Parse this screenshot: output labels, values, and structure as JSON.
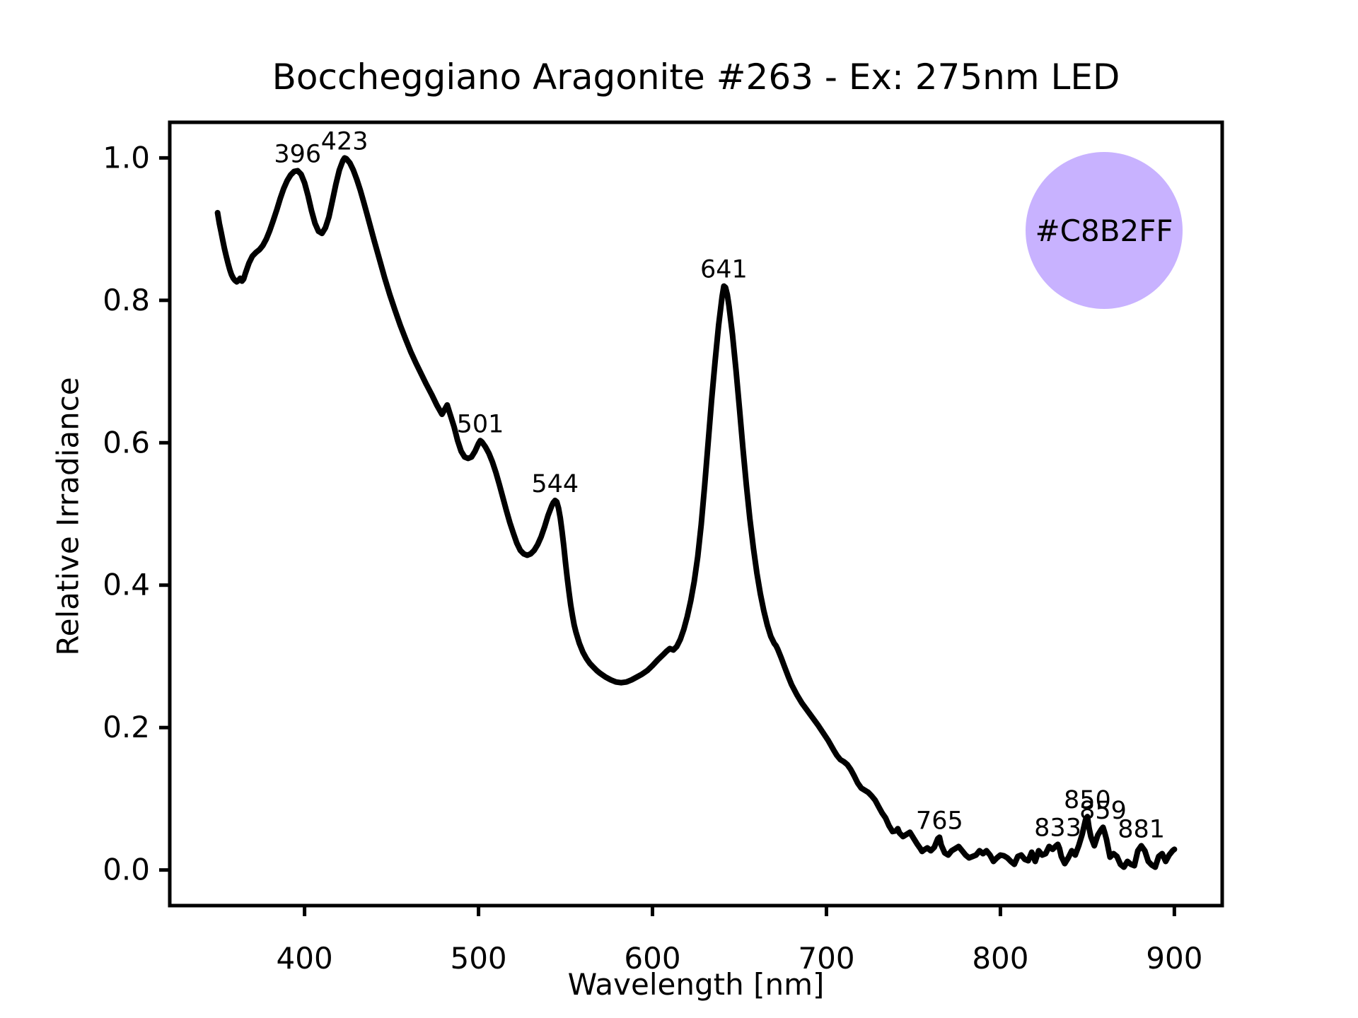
{
  "chart": {
    "title": "Boccheggiano Aragonite #263 - Ex: 275nm LED",
    "xlabel": "Wavelength [nm]",
    "ylabel": "Relative Irradiance"
  },
  "swatch": {
    "label": "#C8B2FF",
    "fill": "#C8B2FF",
    "stroke": "#000000"
  },
  "chart_data": {
    "type": "line",
    "title": "Boccheggiano Aragonite #263 - Ex: 275nm LED",
    "xlabel": "Wavelength [nm]",
    "ylabel": "Relative Irradiance",
    "xlim": [
      322.5,
      927.5
    ],
    "ylim": [
      -0.05,
      1.05
    ],
    "grid": false,
    "line_color": "#000000",
    "xticks": {
      "values": [
        400,
        500,
        600,
        700,
        800,
        900
      ],
      "labels": [
        "400",
        "500",
        "600",
        "700",
        "800",
        "900"
      ]
    },
    "yticks": {
      "values": [
        0.0,
        0.2,
        0.4,
        0.6,
        0.8,
        1.0
      ],
      "labels": [
        "0.0",
        "0.2",
        "0.4",
        "0.6",
        "0.8",
        "1.0"
      ]
    },
    "annotated_peaks": [
      {
        "label": "396",
        "x": 396,
        "y": 0.982
      },
      {
        "label": "423",
        "x": 423,
        "y": 1.0
      },
      {
        "label": "501",
        "x": 501,
        "y": 0.603
      },
      {
        "label": "544",
        "x": 544,
        "y": 0.519
      },
      {
        "label": "641",
        "x": 641,
        "y": 0.82
      },
      {
        "label": "765",
        "x": 765,
        "y": 0.046
      },
      {
        "label": "833",
        "x": 833,
        "y": 0.036
      },
      {
        "label": "850",
        "x": 850,
        "y": 0.075
      },
      {
        "label": "859",
        "x": 859,
        "y": 0.06
      },
      {
        "label": "881",
        "x": 881,
        "y": 0.034
      }
    ],
    "series": [
      {
        "name": "emission spectrum (Ex: 275nm LED)",
        "points": [
          [
            350,
            0.923
          ],
          [
            351,
            0.908
          ],
          [
            352,
            0.896
          ],
          [
            353,
            0.884
          ],
          [
            354,
            0.872
          ],
          [
            355,
            0.862
          ],
          [
            356,
            0.852
          ],
          [
            357,
            0.843
          ],
          [
            358,
            0.836
          ],
          [
            359,
            0.831
          ],
          [
            360,
            0.828
          ],
          [
            361,
            0.826
          ],
          [
            362,
            0.828
          ],
          [
            363,
            0.831
          ],
          [
            364,
            0.827
          ],
          [
            365,
            0.83
          ],
          [
            366,
            0.838
          ],
          [
            368,
            0.852
          ],
          [
            370,
            0.862
          ],
          [
            372,
            0.867
          ],
          [
            374,
            0.871
          ],
          [
            376,
            0.877
          ],
          [
            378,
            0.886
          ],
          [
            380,
            0.898
          ],
          [
            382,
            0.912
          ],
          [
            384,
            0.927
          ],
          [
            386,
            0.943
          ],
          [
            388,
            0.957
          ],
          [
            390,
            0.968
          ],
          [
            392,
            0.976
          ],
          [
            394,
            0.981
          ],
          [
            396,
            0.982
          ],
          [
            398,
            0.977
          ],
          [
            400,
            0.965
          ],
          [
            402,
            0.947
          ],
          [
            404,
            0.926
          ],
          [
            406,
            0.908
          ],
          [
            408,
            0.897
          ],
          [
            410,
            0.894
          ],
          [
            412,
            0.902
          ],
          [
            414,
            0.917
          ],
          [
            416,
            0.94
          ],
          [
            418,
            0.963
          ],
          [
            420,
            0.983
          ],
          [
            422,
            0.996
          ],
          [
            423,
            1.0
          ],
          [
            424,
            0.999
          ],
          [
            426,
            0.993
          ],
          [
            428,
            0.983
          ],
          [
            430,
            0.97
          ],
          [
            432,
            0.955
          ],
          [
            434,
            0.938
          ],
          [
            436,
            0.92
          ],
          [
            438,
            0.902
          ],
          [
            440,
            0.884
          ],
          [
            443,
            0.858
          ],
          [
            446,
            0.832
          ],
          [
            449,
            0.808
          ],
          [
            452,
            0.786
          ],
          [
            455,
            0.765
          ],
          [
            458,
            0.746
          ],
          [
            461,
            0.728
          ],
          [
            464,
            0.712
          ],
          [
            467,
            0.697
          ],
          [
            470,
            0.682
          ],
          [
            473,
            0.668
          ],
          [
            476,
            0.653
          ],
          [
            479,
            0.64
          ],
          [
            482,
            0.653
          ],
          [
            483,
            0.645
          ],
          [
            486,
            0.622
          ],
          [
            488,
            0.603
          ],
          [
            490,
            0.588
          ],
          [
            492,
            0.58
          ],
          [
            494,
            0.578
          ],
          [
            496,
            0.58
          ],
          [
            498,
            0.588
          ],
          [
            500,
            0.599
          ],
          [
            501,
            0.603
          ],
          [
            502,
            0.601
          ],
          [
            504,
            0.594
          ],
          [
            506,
            0.585
          ],
          [
            508,
            0.573
          ],
          [
            510,
            0.558
          ],
          [
            512,
            0.541
          ],
          [
            514,
            0.523
          ],
          [
            516,
            0.505
          ],
          [
            518,
            0.488
          ],
          [
            520,
            0.473
          ],
          [
            522,
            0.459
          ],
          [
            524,
            0.449
          ],
          [
            526,
            0.444
          ],
          [
            528,
            0.442
          ],
          [
            530,
            0.444
          ],
          [
            532,
            0.449
          ],
          [
            534,
            0.457
          ],
          [
            536,
            0.468
          ],
          [
            538,
            0.482
          ],
          [
            540,
            0.498
          ],
          [
            542,
            0.511
          ],
          [
            543,
            0.516
          ],
          [
            544,
            0.519
          ],
          [
            545,
            0.517
          ],
          [
            546,
            0.508
          ],
          [
            547,
            0.494
          ],
          [
            548,
            0.476
          ],
          [
            549,
            0.455
          ],
          [
            550,
            0.432
          ],
          [
            551,
            0.41
          ],
          [
            552,
            0.39
          ],
          [
            553,
            0.372
          ],
          [
            554,
            0.357
          ],
          [
            555,
            0.344
          ],
          [
            556,
            0.334
          ],
          [
            558,
            0.318
          ],
          [
            560,
            0.306
          ],
          [
            562,
            0.297
          ],
          [
            564,
            0.29
          ],
          [
            566,
            0.285
          ],
          [
            568,
            0.28
          ],
          [
            570,
            0.276
          ],
          [
            573,
            0.271
          ],
          [
            576,
            0.267
          ],
          [
            579,
            0.264
          ],
          [
            582,
            0.263
          ],
          [
            585,
            0.264
          ],
          [
            588,
            0.267
          ],
          [
            591,
            0.271
          ],
          [
            594,
            0.275
          ],
          [
            597,
            0.28
          ],
          [
            600,
            0.287
          ],
          [
            603,
            0.295
          ],
          [
            606,
            0.302
          ],
          [
            608,
            0.307
          ],
          [
            610,
            0.311
          ],
          [
            612,
            0.309
          ],
          [
            614,
            0.314
          ],
          [
            616,
            0.324
          ],
          [
            618,
            0.338
          ],
          [
            620,
            0.356
          ],
          [
            622,
            0.378
          ],
          [
            624,
            0.405
          ],
          [
            626,
            0.44
          ],
          [
            628,
            0.485
          ],
          [
            630,
            0.54
          ],
          [
            632,
            0.6
          ],
          [
            634,
            0.66
          ],
          [
            636,
            0.715
          ],
          [
            638,
            0.765
          ],
          [
            640,
            0.805
          ],
          [
            641,
            0.82
          ],
          [
            642,
            0.818
          ],
          [
            643,
            0.808
          ],
          [
            644,
            0.792
          ],
          [
            646,
            0.752
          ],
          [
            648,
            0.702
          ],
          [
            650,
            0.648
          ],
          [
            652,
            0.592
          ],
          [
            654,
            0.54
          ],
          [
            656,
            0.493
          ],
          [
            658,
            0.452
          ],
          [
            660,
            0.417
          ],
          [
            662,
            0.388
          ],
          [
            664,
            0.364
          ],
          [
            666,
            0.344
          ],
          [
            668,
            0.328
          ],
          [
            670,
            0.318
          ],
          [
            671,
            0.315
          ],
          [
            672,
            0.31
          ],
          [
            674,
            0.298
          ],
          [
            676,
            0.285
          ],
          [
            678,
            0.272
          ],
          [
            680,
            0.26
          ],
          [
            683,
            0.246
          ],
          [
            686,
            0.234
          ],
          [
            689,
            0.224
          ],
          [
            692,
            0.214
          ],
          [
            695,
            0.204
          ],
          [
            698,
            0.193
          ],
          [
            701,
            0.182
          ],
          [
            704,
            0.169
          ],
          [
            706,
            0.161
          ],
          [
            708,
            0.155
          ],
          [
            710,
            0.152
          ],
          [
            712,
            0.148
          ],
          [
            714,
            0.141
          ],
          [
            716,
            0.132
          ],
          [
            718,
            0.122
          ],
          [
            720,
            0.115
          ],
          [
            722,
            0.112
          ],
          [
            724,
            0.109
          ],
          [
            726,
            0.104
          ],
          [
            728,
            0.098
          ],
          [
            730,
            0.089
          ],
          [
            732,
            0.08
          ],
          [
            734,
            0.073
          ],
          [
            736,
            0.062
          ],
          [
            738,
            0.054
          ],
          [
            740,
            0.055
          ],
          [
            741,
            0.058
          ],
          [
            742,
            0.052
          ],
          [
            744,
            0.047
          ],
          [
            746,
            0.05
          ],
          [
            748,
            0.053
          ],
          [
            750,
            0.045
          ],
          [
            752,
            0.037
          ],
          [
            754,
            0.03
          ],
          [
            755,
            0.026
          ],
          [
            756,
            0.028
          ],
          [
            758,
            0.031
          ],
          [
            760,
            0.027
          ],
          [
            762,
            0.032
          ],
          [
            764,
            0.044
          ],
          [
            765,
            0.046
          ],
          [
            766,
            0.035
          ],
          [
            768,
            0.024
          ],
          [
            770,
            0.021
          ],
          [
            772,
            0.027
          ],
          [
            774,
            0.03
          ],
          [
            776,
            0.033
          ],
          [
            778,
            0.027
          ],
          [
            780,
            0.021
          ],
          [
            782,
            0.017
          ],
          [
            784,
            0.019
          ],
          [
            786,
            0.021
          ],
          [
            788,
            0.027
          ],
          [
            790,
            0.023
          ],
          [
            792,
            0.027
          ],
          [
            794,
            0.021
          ],
          [
            796,
            0.012
          ],
          [
            798,
            0.017
          ],
          [
            800,
            0.021
          ],
          [
            802,
            0.02
          ],
          [
            804,
            0.017
          ],
          [
            806,
            0.012
          ],
          [
            808,
            0.008
          ],
          [
            810,
            0.019
          ],
          [
            812,
            0.021
          ],
          [
            814,
            0.015
          ],
          [
            816,
            0.013
          ],
          [
            818,
            0.025
          ],
          [
            820,
            0.012
          ],
          [
            822,
            0.027
          ],
          [
            824,
            0.021
          ],
          [
            826,
            0.023
          ],
          [
            828,
            0.033
          ],
          [
            830,
            0.029
          ],
          [
            832,
            0.034
          ],
          [
            833,
            0.036
          ],
          [
            834,
            0.03
          ],
          [
            835,
            0.019
          ],
          [
            837,
            0.009
          ],
          [
            839,
            0.017
          ],
          [
            841,
            0.027
          ],
          [
            843,
            0.021
          ],
          [
            845,
            0.034
          ],
          [
            847,
            0.05
          ],
          [
            849,
            0.071
          ],
          [
            850,
            0.075
          ],
          [
            851,
            0.059
          ],
          [
            852,
            0.047
          ],
          [
            854,
            0.034
          ],
          [
            856,
            0.049
          ],
          [
            858,
            0.057
          ],
          [
            859,
            0.06
          ],
          [
            860,
            0.052
          ],
          [
            861,
            0.043
          ],
          [
            863,
            0.018
          ],
          [
            865,
            0.023
          ],
          [
            867,
            0.019
          ],
          [
            869,
            0.008
          ],
          [
            871,
            0.004
          ],
          [
            873,
            0.012
          ],
          [
            875,
            0.008
          ],
          [
            877,
            0.006
          ],
          [
            879,
            0.027
          ],
          [
            881,
            0.034
          ],
          [
            883,
            0.027
          ],
          [
            885,
            0.012
          ],
          [
            887,
            0.007
          ],
          [
            889,
            0.004
          ],
          [
            891,
            0.019
          ],
          [
            893,
            0.023
          ],
          [
            895,
            0.012
          ],
          [
            897,
            0.021
          ],
          [
            899,
            0.027
          ],
          [
            900,
            0.029
          ]
        ]
      }
    ]
  }
}
